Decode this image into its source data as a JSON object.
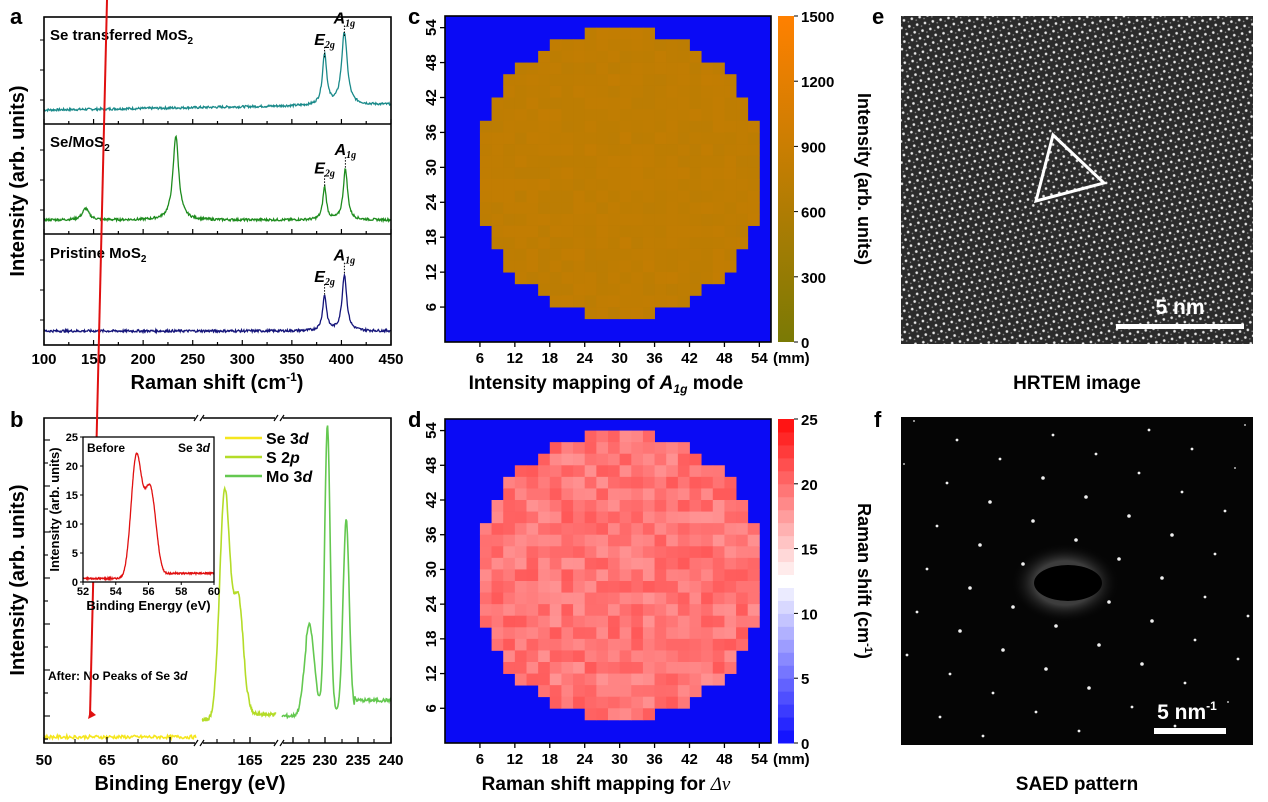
{
  "chart_data": [
    {
      "panel": "a",
      "type": "line",
      "ylabel": "Intensity (arb. units)",
      "xlabel": "Raman shift (cm-1)",
      "xlabel_parts": [
        "Raman shift (cm",
        "-1",
        ")"
      ],
      "xlim": [
        100,
        450
      ],
      "xticks": [
        100,
        150,
        200,
        250,
        300,
        350,
        400,
        450
      ],
      "subplots": [
        {
          "label": "Se transferred MoS2",
          "label_main": "Se transferred MoS",
          "label_sub": "2",
          "color": "#1a8a8a",
          "peaks": [
            {
              "x": 383,
              "h": 0.55,
              "w": 2.6
            },
            {
              "x": 403,
              "h": 0.78,
              "w": 3.4
            }
          ],
          "baseline_slope": 0.06,
          "annotations": [
            {
              "text": "E",
              "sub": "2g",
              "x": 383
            },
            {
              "text": "A",
              "sub": "1g",
              "x": 403
            }
          ]
        },
        {
          "label": "Se/MoS2",
          "label_main": "Se/MoS",
          "label_sub": "2",
          "color": "#1e8c1e",
          "peaks": [
            {
              "x": 142,
              "h": 0.12,
              "w": 4
            },
            {
              "x": 233,
              "h": 0.88,
              "w": 3.5
            },
            {
              "x": 383,
              "h": 0.34,
              "w": 2.2
            },
            {
              "x": 404,
              "h": 0.53,
              "w": 2.6
            }
          ],
          "baseline_slope": 0.0,
          "annotations": [
            {
              "text": "E",
              "sub": "2g",
              "x": 383
            },
            {
              "text": "A",
              "sub": "1g",
              "x": 404
            }
          ]
        },
        {
          "label": "Pristine MoS2",
          "label_main": "Pristine MoS",
          "label_sub": "2",
          "color": "#14147a",
          "peaks": [
            {
              "x": 383,
              "h": 0.36,
              "w": 2.4
            },
            {
              "x": 403,
              "h": 0.58,
              "w": 2.8
            }
          ],
          "baseline_slope": 0.0,
          "annotations": [
            {
              "text": "E",
              "sub": "2g",
              "x": 383
            },
            {
              "text": "A",
              "sub": "1g",
              "x": 403
            }
          ]
        }
      ]
    },
    {
      "panel": "b",
      "type": "line",
      "ylabel": "Intensity (arb. units)",
      "xlabel": "Binding Energy (eV)",
      "xtick_labels": [
        "50",
        "65",
        "60",
        "165",
        "225",
        "230",
        "235",
        "240"
      ],
      "legend": [
        {
          "name": "Se 3d",
          "main": "Se 3",
          "it": "d",
          "color": "#f5e61e"
        },
        {
          "name": "S 2p",
          "main": "S 2",
          "it": "p",
          "color": "#b4dc28"
        },
        {
          "name": "Mo 3d",
          "main": "Mo 3",
          "it": "d",
          "color": "#64c850"
        }
      ],
      "legend_position": "top-right",
      "annotation": {
        "text": "After: No Peaks of Se 3d",
        "main": "After: No Peaks of Se 3",
        "it": "d"
      },
      "series": [
        {
          "name": "Se 3d",
          "color": "#f5e61e",
          "peaks": []
        },
        {
          "name": "S 2p",
          "color": "#b4dc28",
          "peaks": [
            {
              "x": 162,
              "h": 0.8,
              "w": 0.45
            },
            {
              "x": 163.2,
              "h": 0.42,
              "w": 0.45
            }
          ]
        },
        {
          "name": "Mo 3d",
          "color": "#64c850",
          "peaks": [
            {
              "x": 226.5,
              "h": 0.3,
              "w": 0.8
            },
            {
              "x": 229.5,
              "h": 1.0,
              "w": 0.45
            },
            {
              "x": 232.6,
              "h": 0.67,
              "w": 0.5
            }
          ]
        }
      ],
      "inset": {
        "type": "line",
        "title_left": "Before",
        "title_right_main": "Se 3",
        "title_right_it": "d",
        "xlabel": "Binding Energy (eV)",
        "ylabel": "Intensity (arb. units)",
        "xlim": [
          52,
          60
        ],
        "ylim": [
          0,
          25
        ],
        "xticks": [
          52,
          54,
          56,
          58,
          60
        ],
        "yticks": [
          0,
          5,
          10,
          15,
          20,
          25
        ],
        "color": "#e01010",
        "peaks": [
          {
            "x": 55.25,
            "h": 20.5,
            "w": 0.32
          },
          {
            "x": 56.1,
            "h": 15.5,
            "w": 0.36
          }
        ],
        "baseline": 0.6,
        "baseline_after": 1.5
      }
    },
    {
      "panel": "c",
      "type": "heatmap",
      "title": "Intensity mapping of A1g mode",
      "title_main": "Intensity mapping of ",
      "title_it": "A",
      "title_sub": "1g",
      "title_after": " mode",
      "x_unit": "(mm)",
      "ticks": [
        6,
        12,
        18,
        24,
        30,
        36,
        42,
        48,
        54
      ],
      "range_mm": [
        0,
        56
      ],
      "cell_mm": 2,
      "wafer_diameter_mm": 50,
      "background_color": "#0a0af5",
      "colorbar": {
        "label": "Intensity (arb. units)",
        "min": 0,
        "max": 1500,
        "ticks": [
          0,
          300,
          600,
          900,
          1200,
          1500
        ],
        "colors": [
          "#7a7a05",
          "#ff8000"
        ]
      },
      "typical_value": 780,
      "value_jitter": 40
    },
    {
      "panel": "d",
      "type": "heatmap",
      "title": "Raman shift mapping for Δν",
      "title_main": "Raman shift mapping for ",
      "title_it": "Δν",
      "x_unit": "(mm)",
      "ticks": [
        6,
        12,
        18,
        24,
        30,
        36,
        42,
        48,
        54
      ],
      "range_mm": [
        0,
        56
      ],
      "cell_mm": 2,
      "wafer_diameter_mm": 50,
      "background_color": "#0a0af5",
      "colorbar": {
        "label": "Raman shift (cm-1)",
        "label_main": "Raman shift (cm",
        "label_sup": "-1",
        "label_end": ")",
        "min": 0,
        "max": 25,
        "ticks": [
          0,
          5,
          10,
          15,
          20,
          25
        ],
        "colors": [
          "#0a0aff",
          "#ffffff",
          "#ff0a0a"
        ],
        "mid": 12.5
      },
      "typical_value": 19.5,
      "value_jitter": 1.5
    }
  ],
  "images": {
    "e": {
      "panel": "e",
      "caption": "HRTEM image",
      "scalebar": "5 nm"
    },
    "f": {
      "panel": "f",
      "caption": "SAED pattern",
      "scalebar_main": "5 nm",
      "scalebar_sup": "-1"
    }
  },
  "panel_letters": [
    "a",
    "b",
    "c",
    "d",
    "e",
    "f"
  ]
}
